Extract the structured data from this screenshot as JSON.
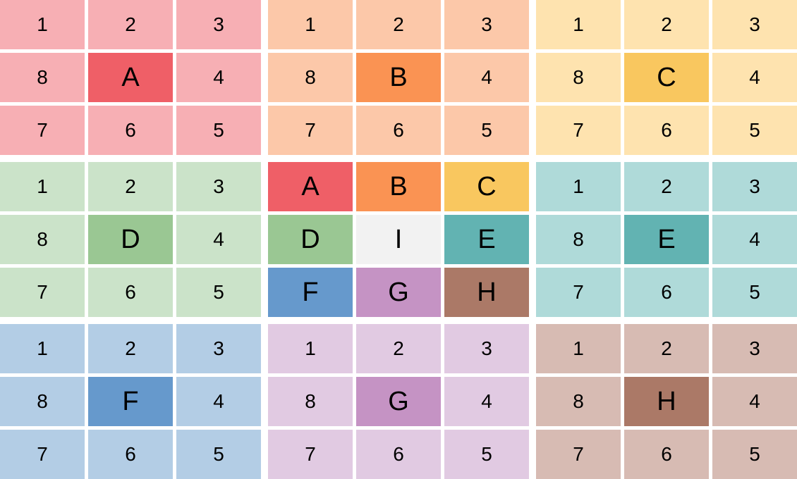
{
  "blocks": [
    {
      "light": "#F7AFB4",
      "center": "#EF5F67",
      "cells": [
        "1",
        "2",
        "3",
        "8",
        "A",
        "4",
        "7",
        "6",
        "5"
      ]
    },
    {
      "light": "#FCC8A9",
      "center": "#FA9353",
      "cells": [
        "1",
        "2",
        "3",
        "8",
        "B",
        "4",
        "7",
        "6",
        "5"
      ]
    },
    {
      "light": "#FEE3AF",
      "center": "#F9C75F",
      "cells": [
        "1",
        "2",
        "3",
        "8",
        "C",
        "4",
        "7",
        "6",
        "5"
      ]
    },
    {
      "light": "#CBE3C9",
      "center": "#9AC793",
      "cells": [
        "1",
        "2",
        "3",
        "8",
        "D",
        "4",
        "7",
        "6",
        "5"
      ]
    },
    {
      "light": null,
      "center": "#F2F2F2",
      "cells": [
        "A",
        "B",
        "C",
        "D",
        "I",
        "E",
        "F",
        "G",
        "H"
      ],
      "cell_colors": [
        "#EF5F67",
        "#FA9353",
        "#F9C75F",
        "#9AC793",
        "#F2F2F2",
        "#62B3B2",
        "#6699CC",
        "#C593C4",
        "#AB7967"
      ]
    },
    {
      "light": "#AFDAD9",
      "center": "#62B3B2",
      "cells": [
        "1",
        "2",
        "3",
        "8",
        "E",
        "4",
        "7",
        "6",
        "5"
      ]
    },
    {
      "light": "#B3CDE5",
      "center": "#6699CC",
      "cells": [
        "1",
        "2",
        "3",
        "8",
        "F",
        "4",
        "7",
        "6",
        "5"
      ]
    },
    {
      "light": "#E1CAE2",
      "center": "#C593C4",
      "cells": [
        "1",
        "2",
        "3",
        "8",
        "G",
        "4",
        "7",
        "6",
        "5"
      ]
    },
    {
      "light": "#D7BBB3",
      "center": "#AB7967",
      "cells": [
        "1",
        "2",
        "3",
        "8",
        "H",
        "4",
        "7",
        "6",
        "5"
      ]
    }
  ]
}
